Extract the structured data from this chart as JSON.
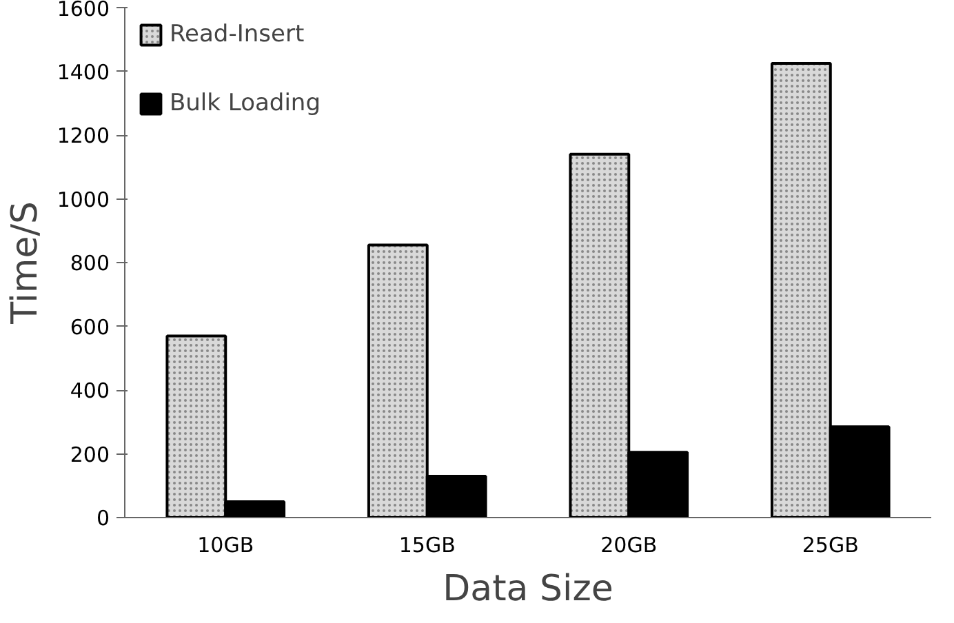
{
  "chart_data": {
    "type": "bar",
    "xlabel": "Data Size",
    "ylabel": "Time/S",
    "categories": [
      "10GB",
      "15GB",
      "20GB",
      "25GB"
    ],
    "series": [
      {
        "name": "Read-Insert",
        "color": "#d9d9d9",
        "values": [
          570,
          855,
          1140,
          1425
        ]
      },
      {
        "name": "Bulk Loading",
        "color": "#000000",
        "values": [
          50,
          130,
          205,
          285
        ]
      }
    ],
    "ylim": [
      0,
      1600
    ],
    "yticks": [
      0,
      200,
      400,
      600,
      800,
      1000,
      1200,
      1400,
      1600
    ],
    "grid": false,
    "legend": "top left"
  }
}
